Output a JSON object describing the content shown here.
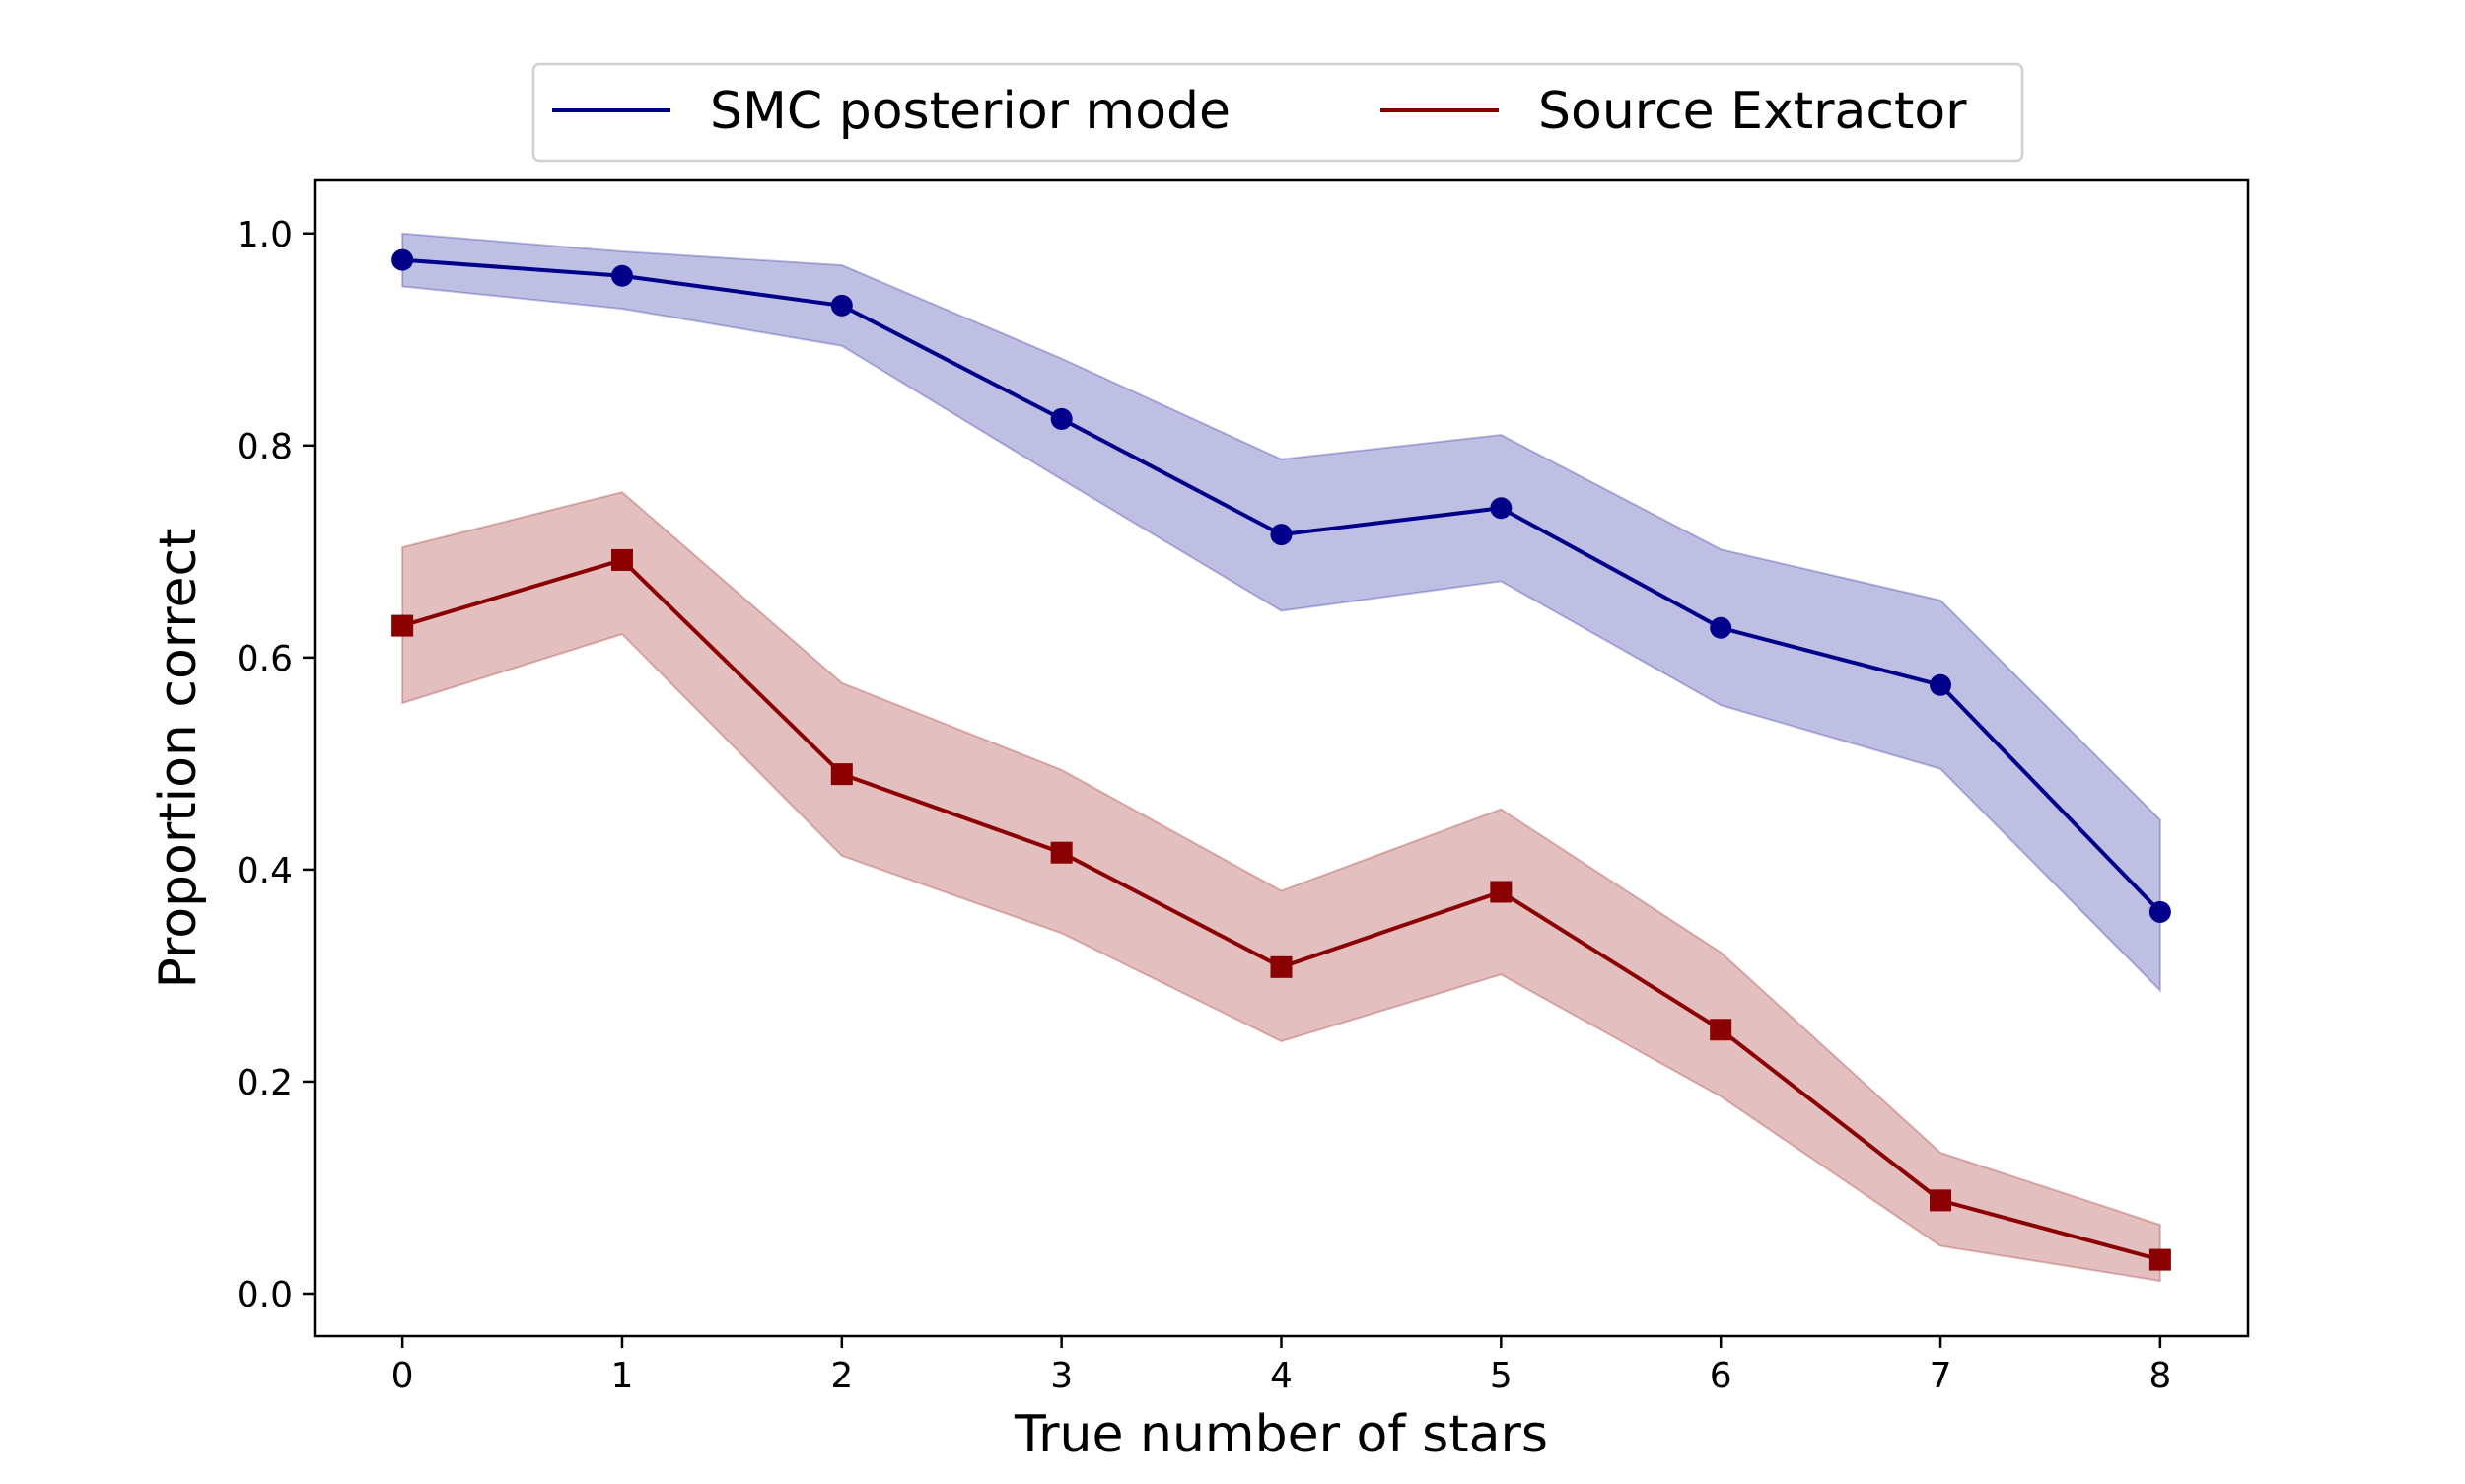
{
  "chart_data": {
    "type": "line",
    "x": [
      0,
      1,
      2,
      3,
      4,
      5,
      6,
      7,
      8
    ],
    "xlabel": "True number of stars",
    "ylabel": "Proportion correct",
    "xlim": [
      -0.4,
      8.4
    ],
    "ylim": [
      -0.04,
      1.05
    ],
    "xticks": [
      0,
      1,
      2,
      3,
      4,
      5,
      6,
      7,
      8
    ],
    "yticks": [
      "0.0",
      "0.2",
      "0.4",
      "0.6",
      "0.8",
      "1.0"
    ],
    "grid": false,
    "legend_position": "top-center, outside plot",
    "series": [
      {
        "name": "SMC posterior mode",
        "color": "#00008B",
        "band_color": "#BFBFE3",
        "marker": "circle",
        "values": [
          0.975,
          0.96,
          0.932,
          0.825,
          0.716,
          0.741,
          0.628,
          0.574,
          0.36
        ],
        "lower": [
          0.95,
          0.929,
          0.894,
          0.768,
          0.644,
          0.672,
          0.555,
          0.495,
          0.286
        ],
        "upper": [
          1.0,
          0.983,
          0.97,
          0.882,
          0.787,
          0.81,
          0.702,
          0.654,
          0.447
        ]
      },
      {
        "name": "Source Extractor",
        "color": "#8B0000",
        "band_color": "#E3BFBF",
        "marker": "square",
        "values": [
          0.63,
          0.692,
          0.49,
          0.416,
          0.308,
          0.379,
          0.249,
          0.088,
          0.032
        ],
        "lower": [
          0.557,
          0.622,
          0.413,
          0.34,
          0.238,
          0.301,
          0.186,
          0.045,
          0.012
        ],
        "upper": [
          0.704,
          0.756,
          0.576,
          0.494,
          0.38,
          0.457,
          0.322,
          0.133,
          0.065
        ]
      }
    ]
  }
}
